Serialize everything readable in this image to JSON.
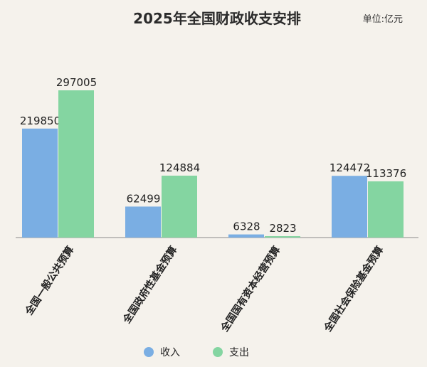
{
  "chart_data": {
    "type": "bar",
    "title": "2025年全国财政收支安排",
    "unit": "单位:亿元",
    "categories": [
      "全国一般公共预算",
      "全国政府性基金预算",
      "全国国有资本经营预算",
      "全国社会保险基金预算"
    ],
    "series": [
      {
        "name": "收入",
        "values": [
          219850,
          62499,
          6328,
          124472
        ]
      },
      {
        "name": "支出",
        "values": [
          297005,
          124884,
          2823,
          113376
        ]
      }
    ],
    "ylim": [
      0,
      297005
    ],
    "grid": false,
    "legend": "bottom",
    "colors": {
      "收入": "#7aaee3",
      "支出": "#84d5a1"
    }
  }
}
